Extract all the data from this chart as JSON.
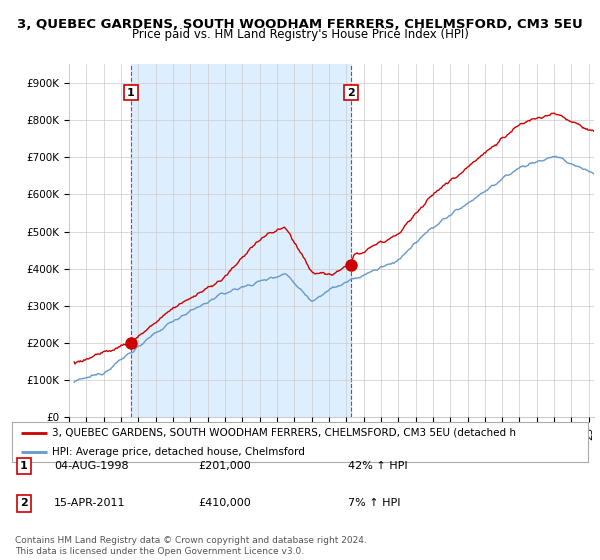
{
  "title": "3, QUEBEC GARDENS, SOUTH WOODHAM FERRERS, CHELMSFORD, CM3 5EU",
  "subtitle": "Price paid vs. HM Land Registry's House Price Index (HPI)",
  "ylabel_ticks": [
    "£0",
    "£100K",
    "£200K",
    "£300K",
    "£400K",
    "£500K",
    "£600K",
    "£700K",
    "£800K",
    "£900K"
  ],
  "ytick_values": [
    0,
    100000,
    200000,
    300000,
    400000,
    500000,
    600000,
    700000,
    800000,
    900000
  ],
  "ylim": [
    0,
    950000
  ],
  "xlim_start": 1995.3,
  "xlim_end": 2025.3,
  "sale1_date": 1998.58,
  "sale1_price": 201000,
  "sale2_date": 2011.28,
  "sale2_price": 410000,
  "legend_line1": "3, QUEBEC GARDENS, SOUTH WOODHAM FERRERS, CHELMSFORD, CM3 5EU (detached h",
  "legend_line2": "HPI: Average price, detached house, Chelmsford",
  "footer": "Contains HM Land Registry data © Crown copyright and database right 2024.\nThis data is licensed under the Open Government Licence v3.0.",
  "red_color": "#cc0000",
  "blue_color": "#6699cc",
  "fill_color": "#ddeeff",
  "vline_color": "#cc0000",
  "background_color": "#ffffff",
  "grid_color": "#cccccc",
  "title_fontsize": 9.5,
  "subtitle_fontsize": 8.5,
  "tick_fontsize": 7.5,
  "legend_fontsize": 8
}
